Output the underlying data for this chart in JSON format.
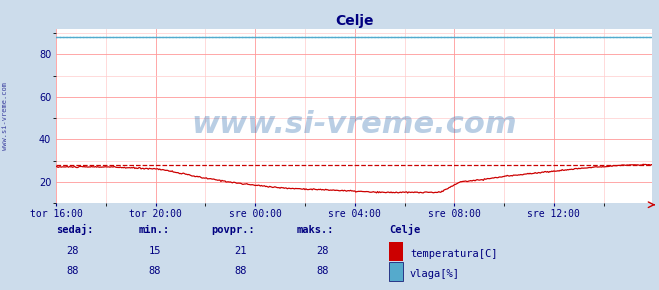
{
  "title": "Celje",
  "title_color": "#000080",
  "bg_color": "#ccdceb",
  "plot_bg_color": "#ffffff",
  "grid_color_major": "#ff9999",
  "grid_color_minor": "#ffcccc",
  "ylim": [
    10,
    92
  ],
  "yticks": [
    20,
    40,
    60,
    80
  ],
  "tick_color": "#000080",
  "temp_color": "#cc0000",
  "vlaga_color": "#55aacc",
  "temp_dashed_color": "#cc0000",
  "vlaga_dashed_color": "#00ccee",
  "watermark_text": "www.si-vreme.com",
  "watermark_color": "#1a5fa8",
  "watermark_alpha": 0.3,
  "watermark_fontsize": 22,
  "sidebar_text": "www.si-vreme.com",
  "sidebar_color": "#000080",
  "xtick_labels": [
    "tor 16:00",
    "tor 20:00",
    "sre 00:00",
    "sre 04:00",
    "sre 08:00",
    "sre 12:00"
  ],
  "xtick_positions": [
    0,
    96,
    192,
    288,
    384,
    480
  ],
  "total_points": 576,
  "temp_max": 28,
  "temp_min": 15,
  "temp_avg": 21,
  "temp_sedaj": 28,
  "vlaga_max": 88,
  "vlaga_min": 88,
  "vlaga_avg": 88,
  "vlaga_sedaj": 88,
  "footer_label_color": "#000080",
  "footer_value_color": "#000080",
  "legend_title": "Celje",
  "legend_title_color": "#000080"
}
